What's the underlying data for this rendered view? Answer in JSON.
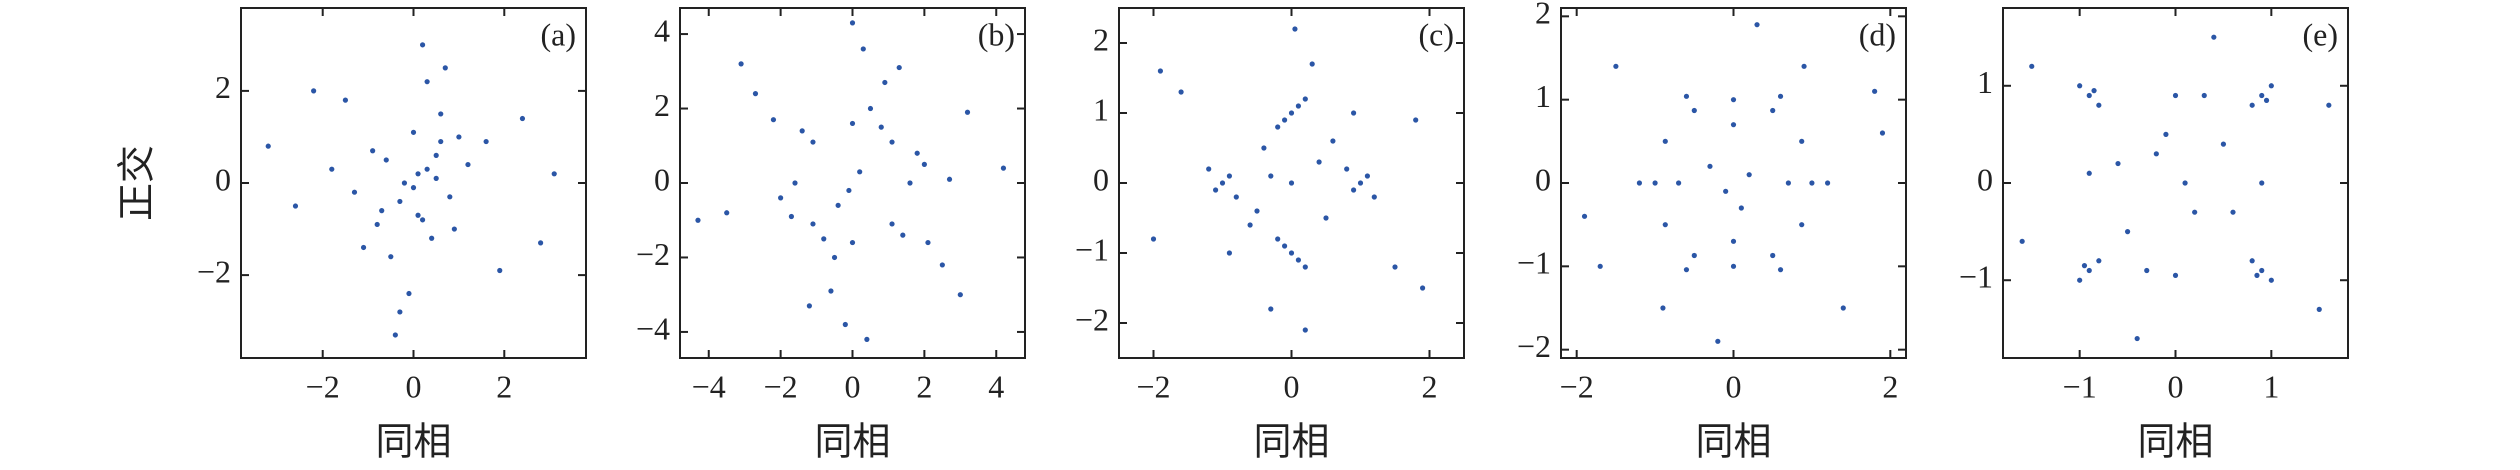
{
  "chart_data": [
    {
      "type": "scatter",
      "label": "(a)",
      "xlabel": "同相",
      "ylabel": "正交",
      "color": "#2b56a6",
      "xlim": [
        -3.8,
        3.8
      ],
      "ylim": [
        -3.8,
        3.8
      ],
      "xticks": [
        {
          "value": -2,
          "label": "−2"
        },
        0,
        2
      ],
      "yticks": [
        {
          "value": -2,
          "label": "−2"
        },
        0,
        2
      ],
      "x": [
        0.1,
        -0.3,
        0.5,
        -0.6,
        0.2,
        0.8,
        -0.9,
        0.0,
        0.4,
        -0.2,
        1.2,
        -1.3,
        0.6,
        -0.5,
        0.3,
        -0.1,
        1.6,
        -1.8,
        0.9,
        -0.8,
        2.4,
        -2.6,
        0.2,
        -0.4,
        3.1,
        -3.2,
        0.7,
        0.0,
        1.9,
        -1.5,
        0.5,
        -0.7,
        2.8,
        -2.2,
        0.1,
        1.0,
        -1.1,
        0.3,
        -0.3,
        0.6
      ],
      "values": [
        0.2,
        -0.4,
        0.1,
        0.5,
        -0.8,
        -0.3,
        0.7,
        1.1,
        -1.2,
        0.0,
        0.4,
        -0.2,
        1.5,
        -1.6,
        2.2,
        -2.4,
        0.9,
        0.3,
        -1.0,
        -0.9,
        1.4,
        -0.5,
        3.0,
        -3.3,
        0.2,
        0.8,
        2.5,
        -0.1,
        -1.9,
        1.8,
        0.6,
        -0.6,
        -1.3,
        2.0,
        -0.7,
        1.0,
        -1.4,
        0.3,
        -2.8,
        0.9
      ]
    },
    {
      "type": "scatter",
      "label": "(b)",
      "xlabel": "同相",
      "color": "#2b56a6",
      "xlim": [
        -4.8,
        4.8
      ],
      "ylim": [
        -4.7,
        4.7
      ],
      "xticks": [
        {
          "value": -4,
          "label": "−4"
        },
        {
          "value": -2,
          "label": "−2"
        },
        0,
        2,
        4
      ],
      "yticks": [
        {
          "value": -4,
          "label": "−4"
        },
        {
          "value": -2,
          "label": "−2"
        },
        0,
        2,
        4
      ],
      "x": [
        1.6,
        1.1,
        0,
        -1.1,
        -1.6,
        -1.1,
        0,
        1.1,
        2.0,
        -2.0,
        0.5,
        -0.5,
        1.4,
        -1.4,
        0.8,
        -0.8,
        3.2,
        -3.5,
        0.3,
        -0.2,
        2.5,
        -2.7,
        1.8,
        -1.7,
        4.2,
        -4.3,
        0.9,
        -0.6,
        2.1,
        -2.2,
        0.2,
        -0.1,
        1.3,
        -1.2,
        3.0,
        -3.1,
        0.0,
        0.4,
        -0.4,
        2.7
      ],
      "values": [
        0,
        1.1,
        1.6,
        1.1,
        0,
        -1.1,
        -1.6,
        -1.1,
        0.5,
        -0.4,
        2.0,
        -2.0,
        -1.4,
        1.4,
        1.5,
        -1.5,
        1.9,
        -0.8,
        3.6,
        -3.8,
        -2.2,
        2.4,
        0.8,
        -0.9,
        0.4,
        -1.0,
        2.7,
        -2.9,
        -1.6,
        1.7,
        0.3,
        -0.2,
        3.1,
        -3.3,
        -3.0,
        3.2,
        4.3,
        -4.2,
        -0.6,
        0.1
      ]
    },
    {
      "type": "scatter",
      "label": "(c)",
      "xlabel": "同相",
      "color": "#2b56a6",
      "xlim": [
        -2.5,
        2.5
      ],
      "ylim": [
        -2.5,
        2.5
      ],
      "xticks": [
        {
          "value": -2,
          "label": "−2"
        },
        0,
        2
      ],
      "yticks": [
        {
          "value": -2,
          "label": "−2"
        },
        {
          "value": -1,
          "label": "−1"
        },
        0,
        1,
        2
      ],
      "x": [
        1,
        1.1,
        0.9,
        1.2,
        0.8,
        -1,
        -1.1,
        -0.9,
        -1.2,
        -0.8,
        0,
        0.1,
        -0.1,
        0.2,
        -0.2,
        0,
        0.1,
        -0.1,
        0.2,
        -0.2,
        0.4,
        -0.5,
        0.5,
        -0.4,
        1.8,
        -2.0,
        0.3,
        -0.3,
        1.5,
        -1.6,
        0.6,
        -0.6,
        0,
        0.05,
        -1.9,
        1.9,
        0.9,
        -0.9,
        0.2,
        -0.3
      ],
      "values": [
        0,
        0.1,
        -0.1,
        -0.2,
        0.2,
        0,
        -0.1,
        0.1,
        0.2,
        -0.2,
        1,
        1.1,
        0.9,
        1.2,
        0.8,
        -1,
        -1.1,
        -0.9,
        -1.2,
        -0.8,
        0.3,
        -0.4,
        -0.5,
        0.5,
        0.9,
        -0.8,
        1.7,
        -1.8,
        -1.2,
        1.3,
        0.6,
        -0.6,
        0,
        2.2,
        1.6,
        -1.5,
        1.0,
        -1.0,
        -2.1,
        0.1
      ]
    },
    {
      "type": "scatter",
      "label": "(d)",
      "xlabel": "同相",
      "color": "#2b56a6",
      "xlim": [
        -2.2,
        2.2
      ],
      "ylim": [
        -2.1,
        2.1
      ],
      "xticks": [
        {
          "value": -2,
          "label": "−2"
        },
        0,
        2
      ],
      "yticks": [
        {
          "value": -2,
          "label": "−2"
        },
        {
          "value": -1,
          "label": "−1"
        },
        0,
        1,
        2
      ],
      "x": [
        1,
        0.87,
        0.5,
        0,
        -0.5,
        -0.87,
        -1,
        -0.87,
        -0.5,
        0,
        0.5,
        0.87,
        1.2,
        0.6,
        -0.6,
        -1.2,
        -0.6,
        0.6,
        0.7,
        0,
        -0.7,
        0,
        0.2,
        -0.3,
        0.1,
        -0.1,
        1.8,
        -1.7,
        1.4,
        -1.5,
        0.3,
        -0.2,
        1.9,
        -1.9,
        0.9,
        -0.9
      ],
      "values": [
        0,
        0.5,
        0.87,
        1,
        0.87,
        0.5,
        0,
        -0.5,
        -0.87,
        -1,
        -0.87,
        -0.5,
        0,
        1.04,
        1.04,
        0,
        -1.04,
        -1.04,
        0,
        0.7,
        0,
        -0.7,
        0.1,
        0.2,
        -0.3,
        -0.1,
        1.1,
        -1.0,
        -1.5,
        1.4,
        1.9,
        -1.9,
        0.6,
        -0.4,
        1.4,
        -1.5
      ]
    },
    {
      "type": "scatter",
      "label": "(e)",
      "xlabel": "同相",
      "color": "#2b56a6",
      "xlim": [
        -1.8,
        1.8
      ],
      "ylim": [
        -1.8,
        1.8
      ],
      "xticks": [
        {
          "value": -1,
          "label": "−1"
        },
        0,
        1
      ],
      "yticks": [
        {
          "value": -1,
          "label": "−1"
        },
        0,
        1
      ],
      "x": [
        0.9,
        1.0,
        0.8,
        0.95,
        -0.9,
        -1.0,
        -0.8,
        -0.85,
        0.9,
        1.0,
        0.8,
        0.85,
        -0.9,
        -1.0,
        -0.8,
        -0.95,
        0.3,
        -0.3,
        0.2,
        -0.2,
        0.9,
        -0.9,
        0,
        0,
        0.5,
        -0.5,
        0.6,
        -0.6,
        1.6,
        -1.6,
        0.4,
        -0.4,
        1.5,
        -1.5,
        0.1,
        -0.1
      ],
      "values": [
        0.9,
        1.0,
        0.8,
        0.85,
        0.9,
        1.0,
        0.8,
        0.95,
        -0.9,
        -1.0,
        -0.8,
        -0.95,
        -0.9,
        -1.0,
        -0.8,
        -0.85,
        0.9,
        -0.9,
        -0.3,
        0.3,
        0,
        0.1,
        0.9,
        -0.95,
        0.4,
        -0.5,
        -0.3,
        0.2,
        0.8,
        -0.6,
        1.5,
        -1.6,
        -1.3,
        1.2,
        0.0,
        0.5
      ]
    }
  ]
}
